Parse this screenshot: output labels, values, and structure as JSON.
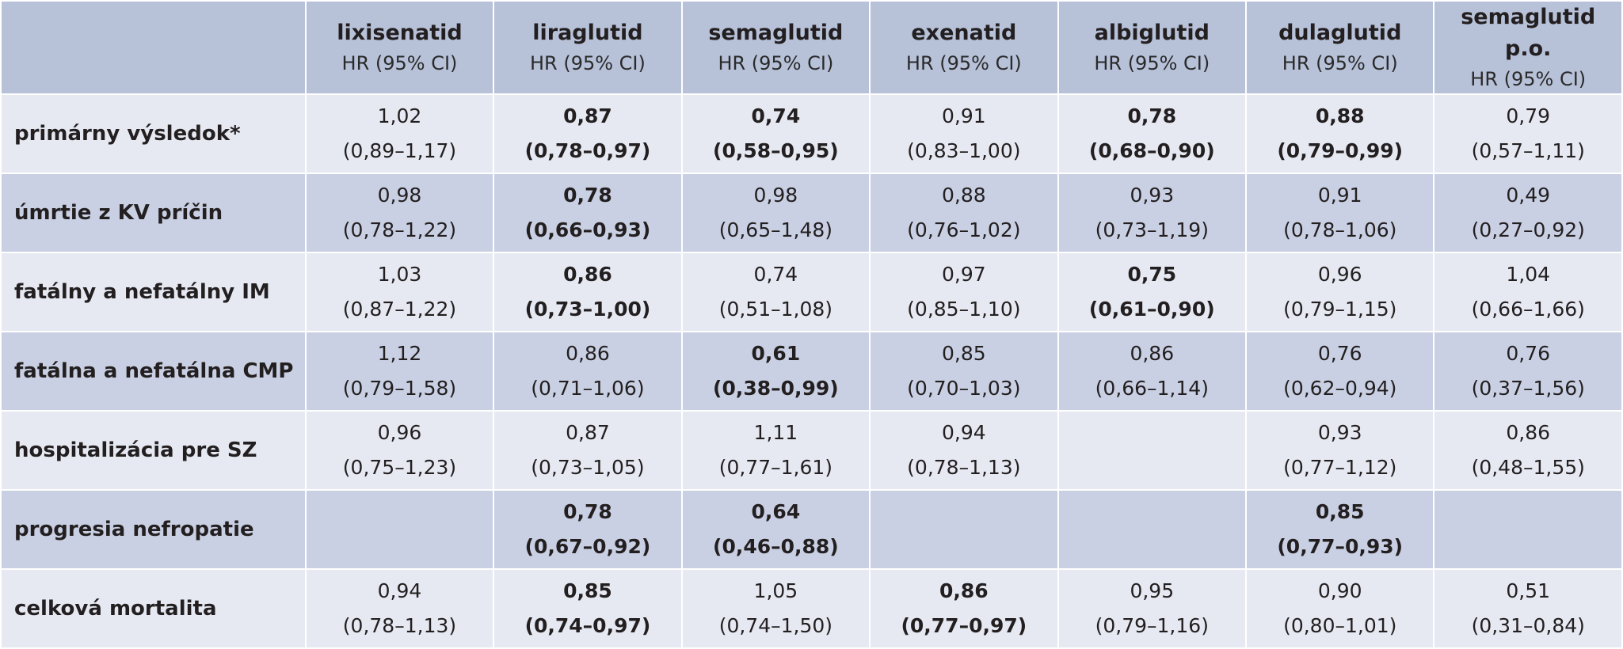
{
  "columns": [
    {
      "name": "lixisenatid",
      "sub": "HR (95% CI)"
    },
    {
      "name": "liraglutid",
      "sub": "HR (95% CI)"
    },
    {
      "name": "semaglutid",
      "sub": "HR (95% CI)"
    },
    {
      "name": "exenatid",
      "sub": "HR (95% CI)"
    },
    {
      "name": "albiglutid",
      "sub": "HR (95% CI)"
    },
    {
      "name": "dulaglutid",
      "sub": "HR (95% CI)"
    },
    {
      "name": "semaglutid p.o.",
      "sub": "HR (95% CI)"
    }
  ],
  "rows": [
    {
      "label": "primárny výsledok*",
      "cells": [
        {
          "v": "1,02",
          "ci": "(0,89–1,17)",
          "bold": false
        },
        {
          "v": "0,87",
          "ci": "(0,78–0,97)",
          "bold": true
        },
        {
          "v": "0,74",
          "ci": "(0,58–0,95)",
          "bold": true
        },
        {
          "v": "0,91",
          "ci": "(0,83–1,00)",
          "bold": false
        },
        {
          "v": "0,78",
          "ci": "(0,68–0,90)",
          "bold": true
        },
        {
          "v": "0,88",
          "ci": "(0,79–0,99)",
          "bold": true
        },
        {
          "v": "0,79",
          "ci": "(0,57–1,11)",
          "bold": false
        }
      ]
    },
    {
      "label": "úmrtie z KV príčin",
      "cells": [
        {
          "v": "0,98",
          "ci": "(0,78–1,22)",
          "bold": false
        },
        {
          "v": "0,78",
          "ci": "(0,66–0,93)",
          "bold": true
        },
        {
          "v": "0,98",
          "ci": "(0,65–1,48)",
          "bold": false
        },
        {
          "v": "0,88",
          "ci": "(0,76–1,02)",
          "bold": false
        },
        {
          "v": "0,93",
          "ci": "(0,73–1,19)",
          "bold": false
        },
        {
          "v": "0,91",
          "ci": "(0,78–1,06)",
          "bold": false
        },
        {
          "v": "0,49",
          "ci": "(0,27–0,92)",
          "bold": false
        }
      ]
    },
    {
      "label": "fatálny a nefatálny IM",
      "cells": [
        {
          "v": "1,03",
          "ci": "(0,87–1,22)",
          "bold": false
        },
        {
          "v": "0,86",
          "ci": "(0,73–1,00)",
          "bold": true
        },
        {
          "v": "0,74",
          "ci": "(0,51–1,08)",
          "bold": false
        },
        {
          "v": "0,97",
          "ci": "(0,85–1,10)",
          "bold": false
        },
        {
          "v": "0,75",
          "ci": "(0,61–0,90)",
          "bold": true
        },
        {
          "v": "0,96",
          "ci": "(0,79–1,15)",
          "bold": false
        },
        {
          "v": "1,04",
          "ci": "(0,66–1,66)",
          "bold": false
        }
      ]
    },
    {
      "label": "fatálna a nefatálna CMP",
      "cells": [
        {
          "v": "1,12",
          "ci": "(0,79–1,58)",
          "bold": false
        },
        {
          "v": "0,86",
          "ci": "(0,71–1,06)",
          "bold": false
        },
        {
          "v": "0,61",
          "ci": "(0,38–0,99)",
          "bold": true
        },
        {
          "v": "0,85",
          "ci": "(0,70–1,03)",
          "bold": false
        },
        {
          "v": "0,86",
          "ci": "(0,66–1,14)",
          "bold": false
        },
        {
          "v": "0,76",
          "ci": "(0,62–0,94)",
          "bold": false
        },
        {
          "v": "0,76",
          "ci": "(0,37–1,56)",
          "bold": false
        }
      ]
    },
    {
      "label": "hospitalizácia pre SZ",
      "cells": [
        {
          "v": "0,96",
          "ci": "(0,75–1,23)",
          "bold": false
        },
        {
          "v": "0,87",
          "ci": "(0,73–1,05)",
          "bold": false
        },
        {
          "v": "1,11",
          "ci": "(0,77–1,61)",
          "bold": false
        },
        {
          "v": "0,94",
          "ci": "(0,78–1,13)",
          "bold": false
        },
        {
          "v": "",
          "ci": "",
          "bold": false
        },
        {
          "v": "0,93",
          "ci": "(0,77–1,12)",
          "bold": false
        },
        {
          "v": "0,86",
          "ci": "(0,48–1,55)",
          "bold": false
        }
      ]
    },
    {
      "label": "progresia nefropatie",
      "cells": [
        {
          "v": "",
          "ci": "",
          "bold": false
        },
        {
          "v": "0,78",
          "ci": "(0,67–0,92)",
          "bold": true
        },
        {
          "v": "0,64",
          "ci": "(0,46–0,88)",
          "bold": true
        },
        {
          "v": "",
          "ci": "",
          "bold": false
        },
        {
          "v": "",
          "ci": "",
          "bold": false
        },
        {
          "v": "0,85",
          "ci": "(0,77–0,93)",
          "bold": true
        },
        {
          "v": "",
          "ci": "",
          "bold": false
        }
      ]
    },
    {
      "label": "celková mortalita",
      "cells": [
        {
          "v": "0,94",
          "ci": "(0,78–1,13)",
          "bold": false
        },
        {
          "v": "0,85",
          "ci": "(0,74–0,97)",
          "bold": true
        },
        {
          "v": "1,05",
          "ci": "(0,74–1,50)",
          "bold": false
        },
        {
          "v": "0,86",
          "ci": "(0,77–0,97)",
          "bold": true
        },
        {
          "v": "0,95",
          "ci": "(0,79–1,16)",
          "bold": false
        },
        {
          "v": "0,90",
          "ci": "(0,80–1,01)",
          "bold": false
        },
        {
          "v": "0,51",
          "ci": "(0,31–0,84)",
          "bold": false
        }
      ]
    }
  ]
}
